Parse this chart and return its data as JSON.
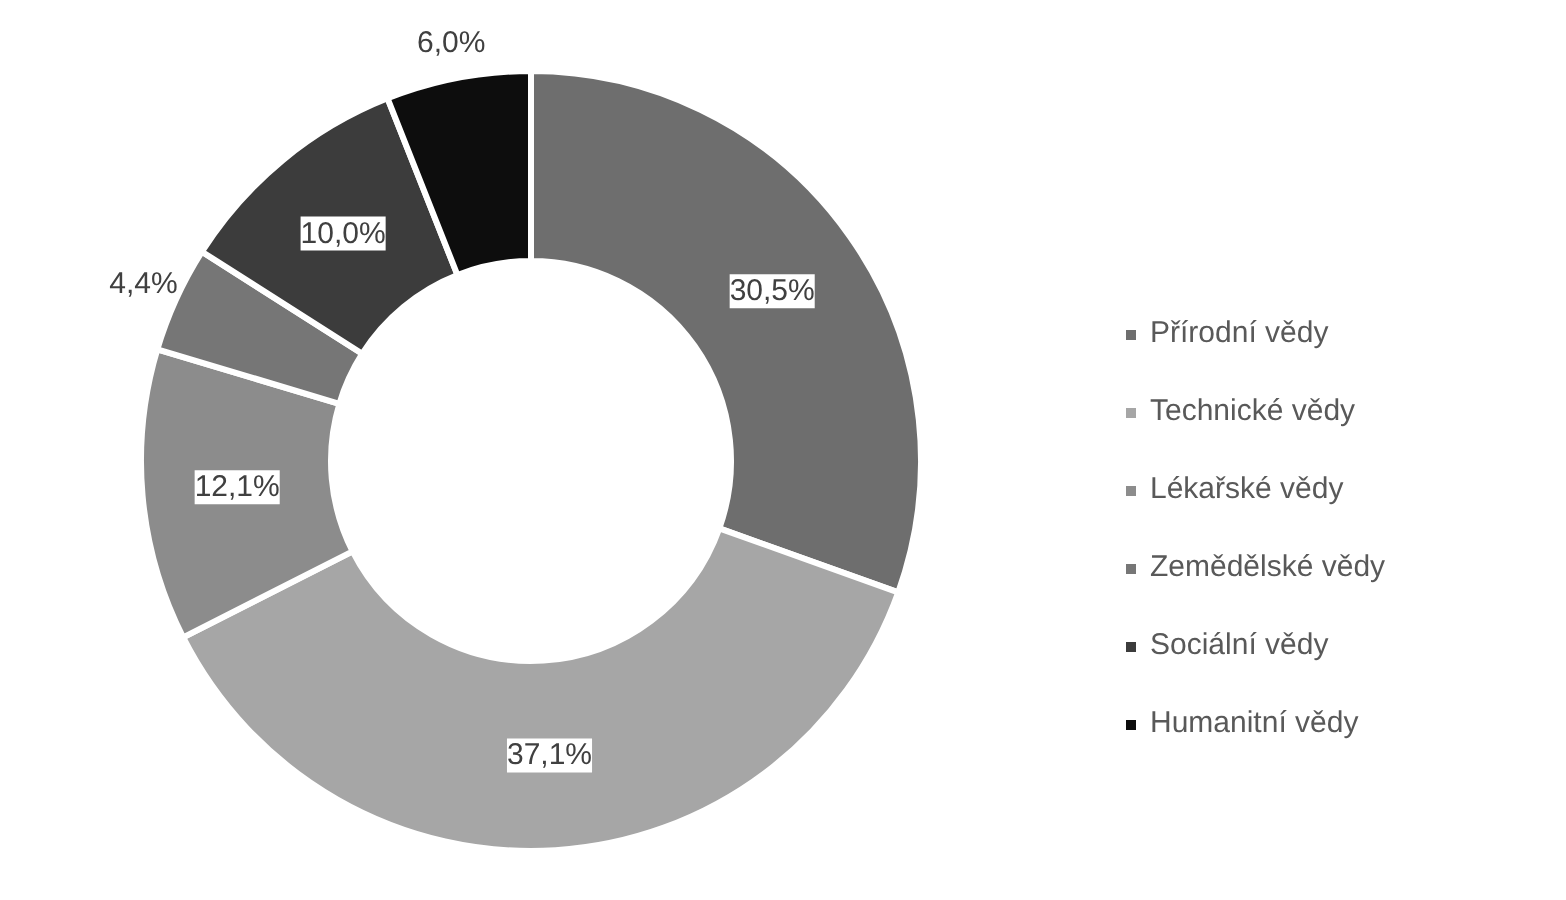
{
  "chart_data": {
    "type": "donut",
    "categories": [
      "Přírodní vědy",
      "Technické vědy",
      "Lékařské vědy",
      "Zemědělské vědy",
      "Sociální vědy",
      "Humanitní vědy"
    ],
    "values": [
      30.5,
      37.1,
      12.1,
      4.4,
      10.0,
      6.0
    ],
    "value_labels": [
      "30,5%",
      "37,1%",
      "12,1%",
      "4,4%",
      "10,0%",
      "6,0%"
    ],
    "colors": [
      "#6e6e6e",
      "#a6a6a6",
      "#8c8c8c",
      "#767676",
      "#3c3c3c",
      "#0d0d0d"
    ],
    "legend": "right"
  }
}
